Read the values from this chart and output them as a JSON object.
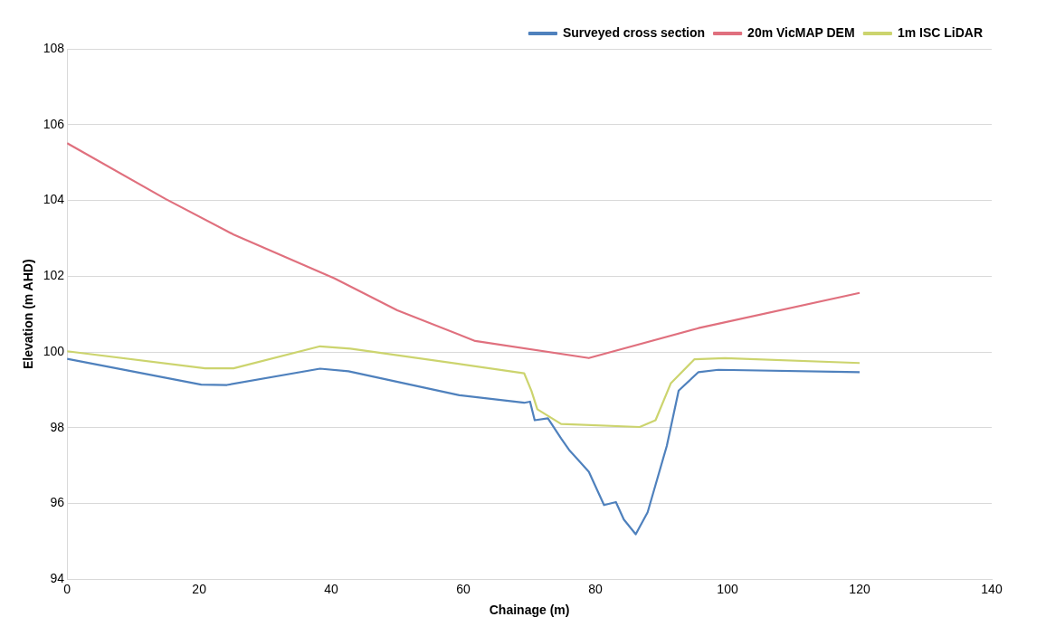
{
  "chart_data": {
    "type": "line",
    "xlabel": "Chainage (m)",
    "ylabel": "Elevation (m AHD)",
    "xlim": [
      0,
      140
    ],
    "xticks": [
      0,
      20,
      40,
      60,
      80,
      100,
      120,
      140
    ],
    "ylim": [
      94,
      108
    ],
    "yticks": [
      94,
      96,
      98,
      100,
      102,
      104,
      106,
      108
    ],
    "grid": "y",
    "legend": "top right",
    "marker": "none",
    "line_style": "solid",
    "series": [
      {
        "name": "Surveyed cross section",
        "color": "#4f81bd",
        "x": [
          0,
          20.3,
          24.2,
          38.3,
          42.6,
          59.4,
          69.2,
          70.1,
          70.8,
          72.8,
          74.8,
          76,
          79,
          81.3,
          83.1,
          84.3,
          86.1,
          87.9,
          90.8,
          92.6,
          95.6,
          98.6,
          120
        ],
        "values": [
          99.82,
          99.14,
          99.13,
          99.56,
          99.49,
          98.86,
          98.66,
          98.69,
          98.2,
          98.25,
          97.72,
          97.42,
          96.84,
          95.96,
          96.04,
          95.58,
          95.19,
          95.77,
          97.52,
          98.98,
          99.47,
          99.53,
          99.47
        ]
      },
      {
        "name": "20m VicMAP DEM",
        "color": "#e0707e",
        "x": [
          0,
          14.9,
          25.2,
          40.5,
          50,
          61.8,
          79,
          95.6,
          120
        ],
        "values": [
          105.51,
          104.04,
          103.1,
          101.94,
          101.1,
          100.29,
          99.84,
          100.63,
          101.56
        ]
      },
      {
        "name": "1m ISC LiDAR",
        "color": "#ccd46e",
        "x": [
          0,
          20.9,
          25.2,
          38.3,
          42.9,
          69.2,
          70.3,
          71.2,
          74.8,
          86.7,
          89.1,
          91.4,
          95,
          99.6,
          120
        ],
        "values": [
          100.02,
          99.57,
          99.57,
          100.15,
          100.09,
          99.44,
          98.98,
          98.49,
          98.1,
          98.02,
          98.2,
          99.17,
          99.81,
          99.84,
          99.71
        ]
      }
    ]
  }
}
